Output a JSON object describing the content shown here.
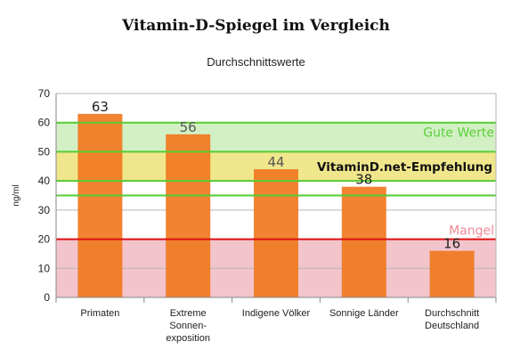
{
  "chart_data": {
    "type": "bar",
    "title": "Vitamin-D-Spiegel im Vergleich",
    "subtitle": "Durchschnittswerte",
    "ylabel": "ng/ml",
    "ylim": [
      0,
      70
    ],
    "yticks": [
      0,
      10,
      20,
      30,
      40,
      50,
      60,
      70
    ],
    "grid": true,
    "categories": [
      [
        "Primaten"
      ],
      [
        "Extreme",
        "Sonnen-",
        "exposition"
      ],
      [
        "Indigene Völker"
      ],
      [
        "Sonnige Länder"
      ],
      [
        "Durchschnitt",
        "Deutschland"
      ]
    ],
    "values": [
      63,
      56,
      44,
      38,
      16
    ],
    "value_labels": [
      "63",
      "56",
      "44",
      "38",
      "16"
    ],
    "bar_color": "#f07820",
    "zones": [
      {
        "label": "Gute Werte",
        "from": 40,
        "to": 60,
        "fill": "#d2f0c4",
        "line": "#55cc33",
        "text_color": "#5ccf3a"
      },
      {
        "label": "VitaminD.net-Empfehlung",
        "from": 40,
        "to": 50,
        "fill": "#f0e68c",
        "line": "#f0e68c",
        "text_color": "#111111"
      },
      {
        "label": "Mangel",
        "from": 0,
        "to": 20,
        "fill": "#f3c4cc",
        "line": "#dd1111",
        "text_color": "#f08a96"
      }
    ],
    "reference_lines": [
      {
        "value": 60,
        "color": "#55cc33"
      },
      {
        "value": 50,
        "color": "#55cc33"
      },
      {
        "value": 40,
        "color": "#55cc33"
      },
      {
        "value": 35,
        "color": "#55cc33"
      },
      {
        "value": 20,
        "color": "#dd1111"
      }
    ]
  }
}
